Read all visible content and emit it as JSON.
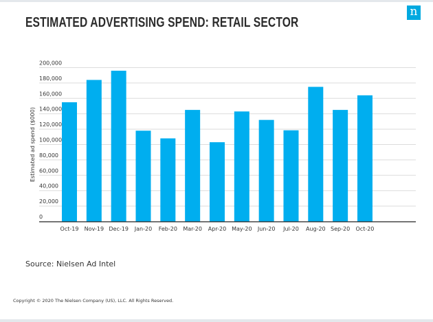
{
  "chart_data": {
    "type": "bar",
    "title": "ESTIMATED ADVERTISING SPEND: RETAIL SECTOR",
    "xlabel": "",
    "ylabel": "Estimated ad spend ($000)",
    "ylim": [
      0,
      200000
    ],
    "yticks": [
      "0",
      "20,000",
      "40,000",
      "60,000",
      "80,000",
      "100,000",
      "120,000",
      "140,000",
      "160,000",
      "180,000",
      "200,000"
    ],
    "grid": true,
    "bar_color": "#00aeef",
    "categories": [
      "Oct-19",
      "Nov-19",
      "Dec-19",
      "Jan-20",
      "Feb-20",
      "Mar-20",
      "Apr-20",
      "May-20",
      "Jun-20",
      "Jul-20",
      "Aug-20",
      "Sep-20",
      "Oct-20"
    ],
    "values": [
      155000,
      184000,
      196000,
      118000,
      108000,
      145000,
      103000,
      143000,
      132000,
      118500,
      175000,
      145000,
      164000
    ]
  },
  "logo": {
    "text": "n",
    "color": "#00a9e0"
  },
  "source": "Source: Nielsen Ad Intel",
  "copyright": "Copyright © 2020 The Nielsen Company (US), LLC. All Rights Reserved."
}
